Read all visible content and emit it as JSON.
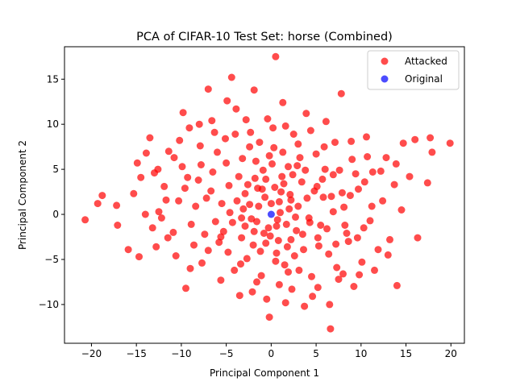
{
  "chart_data": {
    "type": "scatter",
    "title": "PCA of CIFAR-10 Test Set: horse (Combined)",
    "xlabel": "Principal Component 1",
    "ylabel": "Principal Component 2",
    "xlim": [
      -23,
      21.5
    ],
    "ylim": [
      -14.3,
      18.6
    ],
    "xticks": [
      -20,
      -15,
      -10,
      -5,
      0,
      5,
      10,
      15,
      20
    ],
    "yticks": [
      -10,
      -5,
      0,
      5,
      10,
      15
    ],
    "grid": false,
    "legend_position": "top-right",
    "series": [
      {
        "name": "Attacked",
        "color": "#ff0000",
        "opacity": 0.7,
        "points": [
          [
            -20.7,
            -0.6
          ],
          [
            -19.3,
            1.2
          ],
          [
            -18.8,
            2.1
          ],
          [
            -17.2,
            1.0
          ],
          [
            -17.1,
            -1.2
          ],
          [
            -15.9,
            -3.9
          ],
          [
            -15.3,
            2.3
          ],
          [
            -14.9,
            5.7
          ],
          [
            -14.7,
            -4.7
          ],
          [
            -14.5,
            4.1
          ],
          [
            -13.9,
            6.8
          ],
          [
            -13.5,
            8.5
          ],
          [
            -13.2,
            -1.5
          ],
          [
            -12.6,
            5.0
          ],
          [
            -12.5,
            0.3
          ],
          [
            -11.9,
            3.1
          ],
          [
            -11.5,
            -2.6
          ],
          [
            -10.8,
            6.3
          ],
          [
            -10.3,
            1.5
          ],
          [
            -9.8,
            11.3
          ],
          [
            -9.3,
            4.1
          ],
          [
            -9.5,
            -8.2
          ],
          [
            -9.1,
            9.6
          ],
          [
            -8.6,
            -3.4
          ],
          [
            -7.9,
            7.6
          ],
          [
            -7.8,
            5.5
          ],
          [
            -7.2,
            1.8
          ],
          [
            -7.0,
            13.9
          ],
          [
            -6.6,
            10.4
          ],
          [
            -6.2,
            -0.8
          ],
          [
            -5.6,
            -7.3
          ],
          [
            -5.6,
            -2.5
          ],
          [
            -5.1,
            8.4
          ],
          [
            -4.9,
            12.6
          ],
          [
            -4.7,
            3.2
          ],
          [
            -4.4,
            15.2
          ],
          [
            -3.9,
            11.7
          ],
          [
            -3.5,
            -9.0
          ],
          [
            -3.2,
            6.2
          ],
          [
            -3.1,
            0.6
          ],
          [
            -2.7,
            -4.9
          ],
          [
            -2.3,
            9.1
          ],
          [
            -1.9,
            13.8
          ],
          [
            -1.6,
            -7.5
          ],
          [
            -1.5,
            2.9
          ],
          [
            -0.9,
            4.9
          ],
          [
            -0.8,
            -2.1
          ],
          [
            -0.4,
            10.6
          ],
          [
            -0.2,
            -11.4
          ],
          [
            0.3,
            7.4
          ],
          [
            0.5,
            17.5
          ],
          [
            0.6,
            -4.3
          ],
          [
            0.9,
            1.4
          ],
          [
            1.3,
            12.4
          ],
          [
            1.6,
            -9.8
          ],
          [
            1.9,
            5.3
          ],
          [
            2.2,
            -2.8
          ],
          [
            2.5,
            8.9
          ],
          [
            3.1,
            -6.2
          ],
          [
            3.4,
            3.6
          ],
          [
            3.9,
            11.2
          ],
          [
            4.2,
            -0.4
          ],
          [
            4.6,
            -9.1
          ],
          [
            5.0,
            6.7
          ],
          [
            5.3,
            -3.5
          ],
          [
            5.8,
            1.9
          ],
          [
            6.1,
            10.3
          ],
          [
            6.6,
            -12.7
          ],
          [
            6.9,
            4.4
          ],
          [
            7.3,
            -5.9
          ],
          [
            7.8,
            13.4
          ],
          [
            8.1,
            0.8
          ],
          [
            8.4,
            -2.1
          ],
          [
            9.0,
            6.1
          ],
          [
            9.2,
            -8.0
          ],
          [
            9.7,
            2.8
          ],
          [
            10.1,
            -5.3
          ],
          [
            10.6,
            8.6
          ],
          [
            11.0,
            -0.7
          ],
          [
            11.3,
            4.7
          ],
          [
            11.9,
            -3.9
          ],
          [
            12.4,
            1.5
          ],
          [
            12.8,
            6.3
          ],
          [
            13.2,
            -2.8
          ],
          [
            13.7,
            3.3
          ],
          [
            14.0,
            -7.9
          ],
          [
            14.5,
            0.5
          ],
          [
            14.7,
            7.9
          ],
          [
            15.4,
            4.2
          ],
          [
            16.0,
            8.3
          ],
          [
            16.3,
            -2.6
          ],
          [
            17.4,
            3.5
          ],
          [
            17.7,
            8.5
          ],
          [
            17.9,
            6.9
          ],
          [
            19.9,
            7.9
          ],
          [
            -13.0,
            4.6
          ],
          [
            -11.7,
            1.6
          ],
          [
            -10.6,
            -4.6
          ],
          [
            -9.9,
            5.3
          ],
          [
            -8.4,
            0.9
          ],
          [
            -7.7,
            -5.4
          ],
          [
            -6.7,
            2.6
          ],
          [
            -6.0,
            6.9
          ],
          [
            -5.3,
            -1.9
          ],
          [
            -4.6,
            0.2
          ],
          [
            -4.1,
            -6.2
          ],
          [
            -3.6,
            4.2
          ],
          [
            -2.9,
            -1.3
          ],
          [
            -2.4,
            7.5
          ],
          [
            -2.0,
            -3.4
          ],
          [
            -1.4,
            0.9
          ],
          [
            -1.1,
            -6.8
          ],
          [
            -0.6,
            3.9
          ],
          [
            -0.3,
            -1.5
          ],
          [
            0.1,
            5.6
          ],
          [
            0.8,
            -2.9
          ],
          [
            1.1,
            2.5
          ],
          [
            1.5,
            -5.6
          ],
          [
            2.0,
            0.6
          ],
          [
            2.4,
            4.4
          ],
          [
            2.8,
            -1.8
          ],
          [
            3.2,
            6.3
          ],
          [
            3.6,
            -3.9
          ],
          [
            4.0,
            1.8
          ],
          [
            4.5,
            -6.9
          ],
          [
            5.1,
            3.1
          ],
          [
            5.5,
            -1.2
          ],
          [
            6.0,
            5.0
          ],
          [
            6.4,
            -4.4
          ],
          [
            6.9,
            0.3
          ],
          [
            7.5,
            -7.2
          ],
          [
            7.9,
            2.4
          ],
          [
            8.6,
            -3.0
          ],
          [
            9.4,
            4.5
          ],
          [
            10.3,
            -1.5
          ],
          [
            -12.2,
            -0.4
          ],
          [
            -10.9,
            -2.0
          ],
          [
            -9.6,
            2.9
          ],
          [
            -8.9,
            -1.1
          ],
          [
            -8.1,
            3.8
          ],
          [
            -7.4,
            -2.2
          ],
          [
            -6.5,
            4.7
          ],
          [
            -5.8,
            -3.1
          ],
          [
            -5.0,
            5.7
          ],
          [
            -4.3,
            -0.9
          ],
          [
            -3.8,
            1.5
          ],
          [
            -3.3,
            -2.6
          ],
          [
            -2.6,
            3.3
          ],
          [
            -2.2,
            -0.5
          ],
          [
            -1.7,
            5.9
          ],
          [
            -1.2,
            -4.1
          ],
          [
            -0.7,
            1.9
          ],
          [
            -0.1,
            -2.4
          ],
          [
            0.4,
            3.0
          ],
          [
            0.7,
            -0.6
          ],
          [
            1.2,
            4.2
          ],
          [
            1.7,
            -1.1
          ],
          [
            2.1,
            2.2
          ],
          [
            2.6,
            -4.6
          ],
          [
            3.0,
            0.9
          ],
          [
            3.5,
            -2.2
          ],
          [
            3.8,
            4.9
          ],
          [
            4.3,
            -0.9
          ],
          [
            4.8,
            2.6
          ],
          [
            5.2,
            -2.6
          ],
          [
            5.7,
            3.9
          ],
          [
            6.2,
            -1.6
          ],
          [
            6.7,
            2.0
          ],
          [
            7.2,
            -3.3
          ],
          [
            7.6,
            4.9
          ],
          [
            8.2,
            -1.2
          ],
          [
            8.8,
            2.1
          ],
          [
            9.6,
            -2.6
          ],
          [
            10.4,
            3.6
          ],
          [
            11.2,
            0.9
          ],
          [
            -14.0,
            0.0
          ],
          [
            -12.8,
            -3.6
          ],
          [
            -11.4,
            7.0
          ],
          [
            -10.2,
            8.2
          ],
          [
            -9.0,
            -6.0
          ],
          [
            -8.0,
            10.0
          ],
          [
            -7.0,
            -4.0
          ],
          [
            -6.3,
            9.1
          ],
          [
            -5.5,
            1.2
          ],
          [
            -4.8,
            -4.2
          ],
          [
            -4.0,
            8.9
          ],
          [
            -3.4,
            -5.5
          ],
          [
            -2.8,
            10.5
          ],
          [
            -2.1,
            -8.6
          ],
          [
            -1.3,
            8.0
          ],
          [
            -0.5,
            -9.4
          ],
          [
            0.2,
            9.6
          ],
          [
            0.9,
            -7.8
          ],
          [
            1.6,
            9.8
          ],
          [
            2.3,
            -8.3
          ],
          [
            3.0,
            7.8
          ],
          [
            3.7,
            -10.2
          ],
          [
            4.4,
            9.3
          ],
          [
            5.2,
            -8.1
          ],
          [
            5.9,
            7.5
          ],
          [
            6.5,
            -10.0
          ],
          [
            7.1,
            8.0
          ],
          [
            8.0,
            -6.6
          ],
          [
            8.9,
            8.1
          ],
          [
            9.8,
            -6.7
          ],
          [
            10.7,
            6.4
          ],
          [
            11.5,
            -6.2
          ],
          [
            12.2,
            4.8
          ],
          [
            13.0,
            -4.5
          ],
          [
            13.9,
            5.6
          ],
          [
            -2.4,
            1.1
          ],
          [
            -1.9,
            -1.9
          ],
          [
            -1.0,
            2.8
          ],
          [
            -0.6,
            -3.2
          ],
          [
            0.0,
            1.2
          ],
          [
            0.6,
            -1.3
          ],
          [
            1.0,
            0.2
          ],
          [
            1.4,
            3.4
          ],
          [
            1.8,
            -3.6
          ],
          [
            2.2,
            1.6
          ],
          [
            2.7,
            -0.3
          ],
          [
            -2.9,
            2.3
          ],
          [
            -3.3,
            -0.4
          ],
          [
            -1.6,
            -0.8
          ],
          [
            -1.8,
            4.0
          ],
          [
            -0.2,
            6.5
          ],
          [
            0.5,
            -5.2
          ],
          [
            1.3,
            6.9
          ],
          [
            1.9,
            -6.4
          ],
          [
            2.9,
            5.4
          ]
        ]
      },
      {
        "name": "Original",
        "color": "#0000ff",
        "opacity": 0.7,
        "points": [
          [
            0.0,
            0.0
          ]
        ]
      }
    ]
  }
}
